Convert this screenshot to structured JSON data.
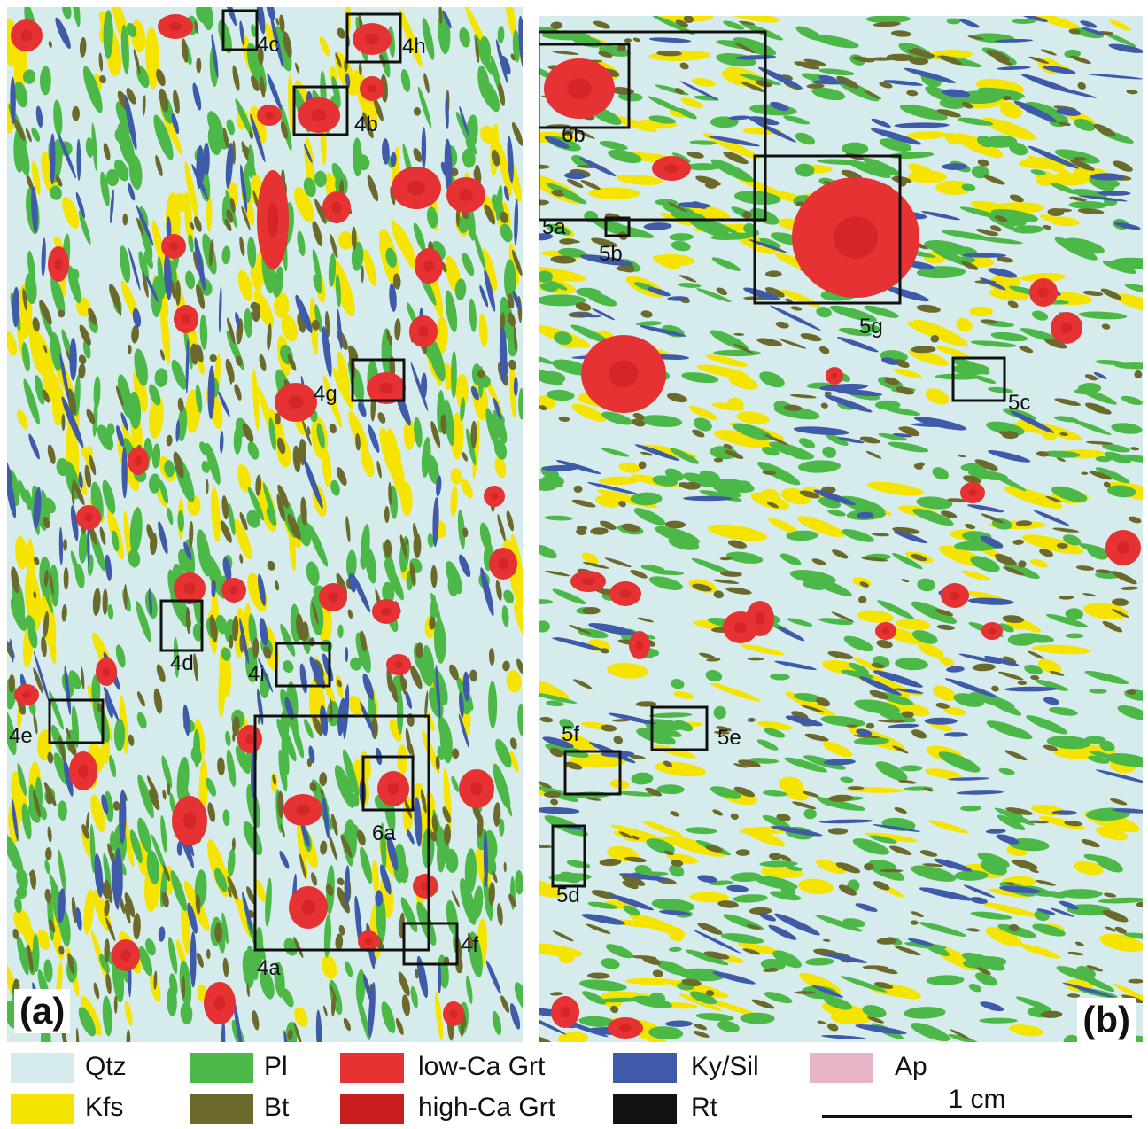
{
  "panels": {
    "a": {
      "label": "(a)",
      "boxes": [
        "4c",
        "4h",
        "4b",
        "4g",
        "4d",
        "4i",
        "4e",
        "4a",
        "6a",
        "4f"
      ]
    },
    "b": {
      "label": "(b)",
      "boxes": [
        "6b",
        "5a",
        "5b",
        "5g",
        "5c",
        "5e",
        "5f",
        "5d"
      ]
    }
  },
  "legend": [
    {
      "label": "Qtz",
      "color": "#d6ecec"
    },
    {
      "label": "Kfs",
      "color": "#f5e400"
    },
    {
      "label": "Pl",
      "color": "#4cb847"
    },
    {
      "label": "Bt",
      "color": "#6b6a2c"
    },
    {
      "label": "low-Ca Grt",
      "color": "#e63232"
    },
    {
      "label": "high-Ca Grt",
      "color": "#c81e1e"
    },
    {
      "label": "Ky/Sil",
      "color": "#3f5aa8"
    },
    {
      "label": "Rt",
      "color": "#111111"
    },
    {
      "label": "Ap",
      "color": "#e8b4c8"
    }
  ],
  "scale": {
    "label": "1 cm"
  }
}
